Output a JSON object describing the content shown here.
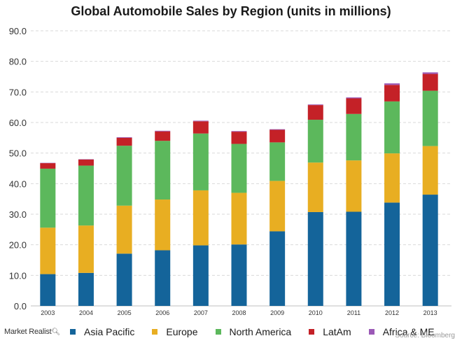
{
  "chart_data": {
    "type": "bar",
    "stacked": true,
    "title": "Global Automobile Sales by Region (units in millions)",
    "categories": [
      "2003",
      "2004",
      "2005",
      "2006",
      "2007",
      "2008",
      "2009",
      "2010",
      "2011",
      "2012",
      "2013"
    ],
    "series": [
      {
        "name": "Asia Pacific",
        "color": "#14649a",
        "values": [
          10.4,
          10.8,
          17.1,
          18.2,
          19.8,
          20.1,
          24.4,
          30.7,
          30.8,
          33.8,
          36.4
        ]
      },
      {
        "name": "Europe",
        "color": "#e8ae22",
        "values": [
          15.2,
          15.5,
          15.7,
          16.6,
          18.0,
          16.9,
          16.5,
          16.2,
          16.8,
          16.1,
          15.9
        ]
      },
      {
        "name": "North America",
        "color": "#5cb85c",
        "values": [
          19.3,
          19.6,
          19.6,
          19.2,
          18.6,
          16.0,
          12.6,
          14.0,
          15.2,
          17.0,
          18.1
        ]
      },
      {
        "name": "LatAm",
        "color": "#c42127",
        "values": [
          1.8,
          2.0,
          2.6,
          3.1,
          4.0,
          4.0,
          4.1,
          4.8,
          5.1,
          5.4,
          5.5
        ]
      },
      {
        "name": "Africa & ME",
        "color": "#9b59b6",
        "values": [
          0.1,
          0.1,
          0.2,
          0.2,
          0.2,
          0.2,
          0.2,
          0.2,
          0.3,
          0.5,
          0.5
        ]
      }
    ],
    "ylim": [
      0,
      90
    ],
    "yticks": [
      "0.0",
      "10.0",
      "20.0",
      "30.0",
      "40.0",
      "50.0",
      "60.0",
      "70.0",
      "80.0",
      "90.0"
    ],
    "grid": true,
    "legend_position": "bottom"
  },
  "brand": {
    "label": "Market Realist",
    "icon": "magnifier-icon"
  },
  "source": "Source: Bloomberg"
}
